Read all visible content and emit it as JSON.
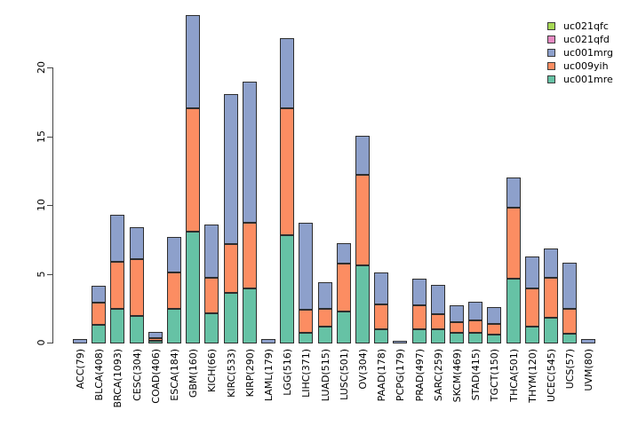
{
  "chart_data": {
    "type": "bar",
    "stacked": true,
    "title": "",
    "xlabel": "",
    "ylabel": "",
    "background": "#ffffff",
    "bar_border_color": "#2e2e2e",
    "categories": [
      "ACC(79)",
      "BLCA(408)",
      "BRCA(1093)",
      "CESC(304)",
      "COAD(406)",
      "ESCA(184)",
      "GBM(160)",
      "KICH(66)",
      "KIRC(533)",
      "KIRP(290)",
      "LAML(179)",
      "LGG(516)",
      "LIHC(371)",
      "LUAD(515)",
      "LUSC(501)",
      "OV(304)",
      "PAAD(178)",
      "PCPG(179)",
      "PRAD(497)",
      "SARC(259)",
      "SKCM(469)",
      "STAD(415)",
      "TGCT(150)",
      "THCA(501)",
      "THYM(120)",
      "UCEC(545)",
      "UCS(57)",
      "UVM(80)"
    ],
    "series": [
      {
        "name": "uc001mre",
        "color": "#66C2A5",
        "values": [
          0,
          1.35,
          2.5,
          2.0,
          0.05,
          2.5,
          8.15,
          2.2,
          3.7,
          4.0,
          0,
          7.85,
          0.8,
          1.2,
          2.3,
          5.7,
          1.05,
          0,
          1.0,
          1.0,
          0.75,
          0.8,
          0.65,
          4.7,
          1.2,
          1.9,
          0.7,
          0
        ]
      },
      {
        "name": "uc009yih",
        "color": "#FC8D62",
        "values": [
          0,
          1.6,
          3.45,
          4.1,
          0.2,
          2.65,
          8.95,
          2.6,
          3.55,
          4.75,
          0,
          9.25,
          1.65,
          1.3,
          3.5,
          6.55,
          1.8,
          0,
          1.75,
          1.1,
          0.8,
          0.9,
          0.75,
          5.15,
          2.75,
          2.9,
          1.8,
          0
        ]
      },
      {
        "name": "uc001mrg",
        "color": "#8DA0CB",
        "values": [
          0.35,
          1.2,
          3.45,
          2.3,
          0.45,
          2.6,
          6.8,
          3.9,
          10.9,
          10.25,
          0.3,
          5.1,
          6.35,
          1.95,
          1.5,
          2.85,
          2.35,
          0.15,
          1.95,
          2.15,
          1.25,
          1.35,
          1.25,
          2.2,
          2.35,
          2.15,
          3.35,
          0.35
        ]
      },
      {
        "name": "uc021qfd",
        "color": "#E78AC3",
        "values": [
          0,
          0,
          0,
          0,
          0,
          0,
          0,
          0,
          0,
          0,
          0,
          0,
          0,
          0,
          0,
          0,
          0,
          0,
          0,
          0,
          0,
          0,
          0,
          0,
          0,
          0,
          0,
          0
        ]
      },
      {
        "name": "uc021qfc",
        "color": "#A6D854",
        "values": [
          0,
          0,
          0,
          0,
          0,
          0,
          0,
          0,
          0,
          0,
          0,
          0,
          0,
          0,
          0,
          0,
          0,
          0,
          0,
          0,
          0,
          0,
          0,
          0,
          0,
          0,
          0,
          0
        ]
      }
    ],
    "y_axis": {
      "ticks": [
        0,
        5,
        10,
        15,
        20
      ],
      "tick_labels": [
        "0",
        "5",
        "10",
        "15",
        "20"
      ],
      "range": [
        0,
        24
      ]
    },
    "legend": {
      "position": "top-right",
      "entries": [
        {
          "label": "uc021qfc",
          "color": "#A6D854"
        },
        {
          "label": "uc021qfd",
          "color": "#E78AC3"
        },
        {
          "label": "uc001mrg",
          "color": "#8DA0CB"
        },
        {
          "label": "uc009yih",
          "color": "#FC8D62"
        },
        {
          "label": "uc001mre",
          "color": "#66C2A5"
        }
      ]
    }
  }
}
